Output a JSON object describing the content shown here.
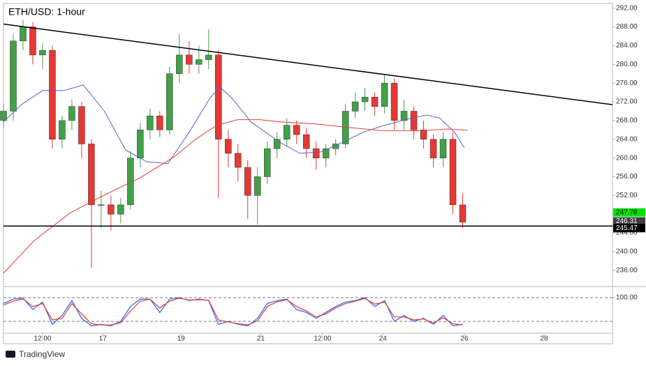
{
  "chart_data": [
    {
      "type": "candlestick",
      "title": "ETH/USD: 1-hour",
      "x": [
        0,
        6,
        12,
        18,
        24,
        30,
        36,
        42,
        48,
        54,
        60,
        66,
        72,
        78,
        84,
        90,
        96,
        102,
        108,
        114,
        120,
        126,
        132,
        138,
        144,
        150,
        156,
        162,
        168,
        174,
        180,
        186,
        192,
        198,
        204,
        210,
        216,
        222,
        228,
        234,
        240,
        246,
        252,
        258,
        264,
        270,
        276,
        282
      ],
      "open": [
        268,
        270,
        285,
        288,
        282,
        283,
        264,
        268,
        271,
        263,
        250,
        250,
        248,
        250,
        260,
        266,
        269,
        266,
        278,
        282,
        280,
        281,
        282,
        264,
        261,
        258,
        252,
        256,
        262,
        264,
        267,
        265,
        262,
        260,
        262,
        263,
        270,
        272,
        273,
        271,
        276,
        268,
        270,
        266,
        264,
        260,
        264,
        250
      ],
      "high": [
        271.5,
        286.5,
        289.5,
        289,
        284.5,
        284,
        269,
        272.5,
        272,
        264,
        253,
        252,
        251.5,
        261.5,
        267.5,
        270.5,
        270,
        279.5,
        286.5,
        285,
        284,
        287.5,
        283,
        266,
        263,
        259.5,
        258,
        263.5,
        265.5,
        268.5,
        268,
        266.5,
        263.5,
        263,
        264,
        271.5,
        274,
        275,
        274,
        278,
        277,
        272.5,
        271,
        268,
        265,
        265.5,
        265.5,
        252.5
      ],
      "low": [
        266.5,
        268,
        283,
        280,
        279,
        262,
        262,
        266,
        260,
        236.5,
        245,
        244.5,
        246,
        249,
        258,
        264,
        264.5,
        265,
        276,
        278,
        278,
        279,
        251.5,
        258,
        255,
        247,
        245.8,
        254.5,
        260,
        262.5,
        263,
        260,
        257.5,
        258,
        260.5,
        262,
        268.5,
        270,
        269,
        269.5,
        266,
        266,
        264,
        262,
        258,
        258,
        248,
        245
      ],
      "close": [
        270,
        285,
        288,
        282,
        283,
        264,
        268,
        271,
        263,
        250,
        250,
        248,
        250,
        260,
        266,
        269,
        266,
        278,
        282,
        280,
        281,
        282,
        264,
        261,
        258,
        252,
        256,
        262,
        264,
        267,
        265,
        262,
        260,
        262,
        263,
        270,
        272,
        273,
        271,
        276,
        268,
        270,
        266,
        264,
        260,
        264,
        250,
        246.31
      ],
      "up_color": "#43a047",
      "down_color": "#e53935",
      "series": [
        {
          "color": "#5b5fc7",
          "x": [
            0,
            11,
            24,
            37,
            49,
            62,
            75,
            88,
            101,
            114,
            127,
            133,
            140,
            152,
            170,
            182,
            195,
            208,
            221,
            234,
            247,
            260,
            268,
            277,
            283
          ],
          "values": [
            267.7,
            271.4,
            274.4,
            274.4,
            275.6,
            270.0,
            261.7,
            259.2,
            258.8,
            265.5,
            272.9,
            275.1,
            272.9,
            267.7,
            263.3,
            261.0,
            261.3,
            263.3,
            265.5,
            267.0,
            268.2,
            269.2,
            268.5,
            265.5,
            262.2
          ]
        },
        {
          "color": "#e53935",
          "x": [
            0,
            19,
            41,
            62,
            84,
            105,
            118,
            131,
            144,
            157,
            170,
            191,
            213,
            234,
            255,
            273,
            285
          ],
          "values": [
            235.4,
            242.4,
            248.3,
            252.1,
            255.8,
            260.3,
            264.0,
            267.0,
            268.2,
            268.2,
            267.7,
            267.3,
            266.5,
            265.8,
            265.8,
            266.2,
            265.9
          ]
        }
      ],
      "trendline": {
        "x": [
          0,
          374
        ],
        "values": [
          288.6,
          271.4
        ],
        "color": "#000000"
      },
      "markers": [
        {
          "value": 247.78,
          "color": "#00e600",
          "text_color": "#000000"
        },
        {
          "value": 246.31,
          "color": "#3d3d3d",
          "text_color": "#ffffff"
        },
        {
          "value": 245.47,
          "color": "#000000",
          "text_color": "#ffffff",
          "line": true
        }
      ],
      "xlim": [
        0,
        374
      ],
      "ylim": [
        232.7,
        293.0
      ],
      "yticks": [
        {
          "value": 236,
          "label": "236.00"
        },
        {
          "value": 240,
          "label": "240.00"
        },
        {
          "value": 244,
          "label": "244.00"
        },
        {
          "value": 248,
          "label": "248.00"
        },
        {
          "value": 252,
          "label": "252.00"
        },
        {
          "value": 256,
          "label": "256.00"
        },
        {
          "value": 260,
          "label": "260.00"
        },
        {
          "value": 264,
          "label": "264.00"
        },
        {
          "value": 268,
          "label": "268.00"
        },
        {
          "value": 272,
          "label": "272.00"
        },
        {
          "value": 276,
          "label": "276.00"
        },
        {
          "value": 280,
          "label": "280.00"
        },
        {
          "value": 284,
          "label": "284.00"
        },
        {
          "value": 288,
          "label": "288.00"
        },
        {
          "value": 292,
          "label": "292.00"
        }
      ]
    },
    {
      "type": "line",
      "x": [
        0,
        6,
        12,
        18,
        24,
        30,
        36,
        42,
        48,
        54,
        60,
        66,
        72,
        78,
        84,
        90,
        96,
        102,
        108,
        114,
        120,
        126,
        132,
        138,
        144,
        150,
        156,
        162,
        168,
        174,
        180,
        186,
        192,
        198,
        204,
        210,
        216,
        222,
        228,
        234,
        240,
        246,
        252,
        258,
        264,
        270,
        276,
        282
      ],
      "series": [
        {
          "color": "#2962ff",
          "values": [
            80,
            95,
            98,
            60,
            85,
            10,
            40,
            90,
            30,
            5,
            10,
            5,
            20,
            70,
            95,
            95,
            50,
            95,
            100,
            90,
            95,
            90,
            10,
            20,
            10,
            5,
            30,
            80,
            90,
            95,
            60,
            50,
            30,
            50,
            70,
            85,
            90,
            100,
            70,
            90,
            20,
            40,
            20,
            30,
            10,
            40,
            5,
            10
          ]
        },
        {
          "color": "#e53935",
          "values": [
            75,
            88,
            96,
            70,
            80,
            25,
            30,
            80,
            45,
            12,
            8,
            8,
            15,
            55,
            88,
            95,
            65,
            88,
            98,
            92,
            93,
            91,
            25,
            18,
            12,
            8,
            22,
            70,
            86,
            93,
            70,
            55,
            35,
            45,
            65,
            80,
            88,
            97,
            78,
            85,
            35,
            35,
            25,
            28,
            15,
            32,
            12,
            8
          ]
        }
      ],
      "levels": [
        100,
        20
      ],
      "xlim": [
        0,
        374
      ],
      "ylim": [
        -20,
        135
      ],
      "yticks": [
        {
          "value": 100,
          "label": "100.00"
        }
      ],
      "xticks": [
        {
          "value": 24,
          "label": "12:00"
        },
        {
          "value": 61,
          "label": "17"
        },
        {
          "value": 109,
          "label": "19"
        },
        {
          "value": 158,
          "label": "21"
        },
        {
          "value": 196,
          "label": "12:00"
        },
        {
          "value": 233,
          "label": "24"
        },
        {
          "value": 283,
          "label": "26"
        },
        {
          "value": 332,
          "label": "28"
        }
      ]
    }
  ],
  "footer": {
    "brand": "TradingView"
  }
}
